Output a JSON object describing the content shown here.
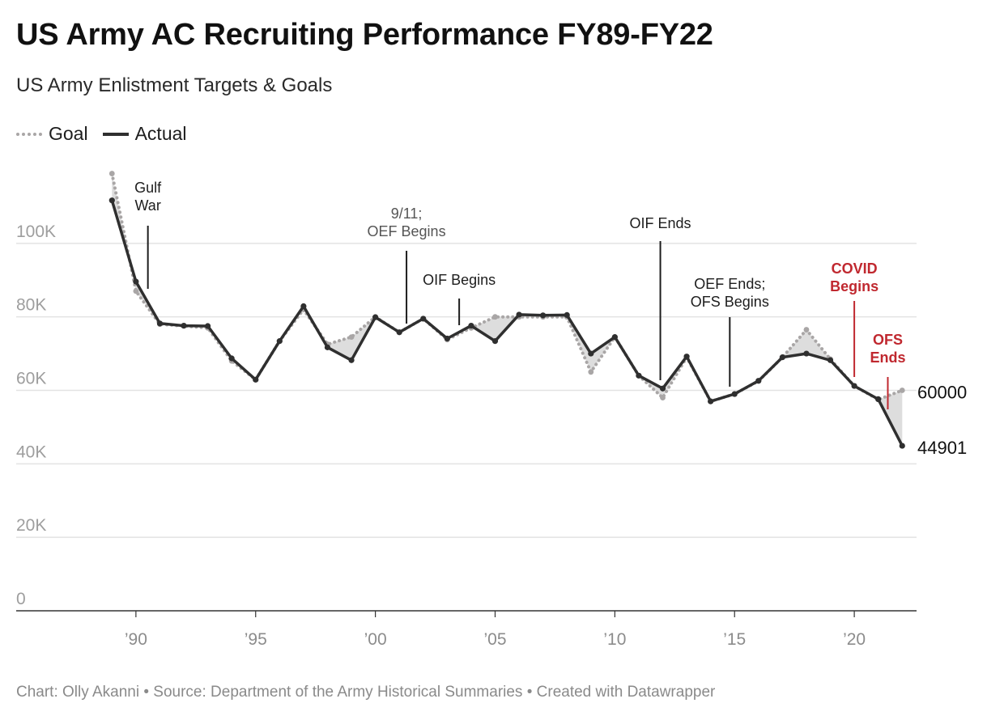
{
  "title": "US Army AC Recruiting Performance FY89-FY22",
  "subtitle": "US Army Enlistment Targets & Goals",
  "legend": {
    "goal_label": "Goal",
    "actual_label": "Actual"
  },
  "footer": "Chart: Olly Akanni • Source: Department of the Army Historical Summaries • Created with Datawrapper",
  "colors": {
    "actual": "#2f2f2f",
    "goal": "#a9a6a6",
    "gap_fill": "#d9d9d9",
    "grid": "#e3e3e3",
    "annotation_red": "#c0282f"
  },
  "chart_data": {
    "type": "line",
    "x": [
      1989,
      1990,
      1991,
      1992,
      1993,
      1994,
      1995,
      1996,
      1997,
      1998,
      1999,
      2000,
      2001,
      2002,
      2003,
      2004,
      2005,
      2006,
      2007,
      2008,
      2009,
      2010,
      2011,
      2012,
      2013,
      2014,
      2015,
      2016,
      2017,
      2018,
      2019,
      2020,
      2021,
      2022
    ],
    "series": [
      {
        "name": "Goal",
        "style": "dotted",
        "values": [
          119000,
          87000,
          78000,
          77500,
          77000,
          68000,
          62900,
          73400,
          82000,
          72550,
          74500,
          80000,
          75800,
          79500,
          73800,
          77000,
          80000,
          80000,
          80000,
          80000,
          65000,
          74500,
          64000,
          58000,
          69000,
          57000,
          59000,
          62500,
          69000,
          76500,
          68500,
          61200,
          57500,
          60000
        ]
      },
      {
        "name": "Actual",
        "style": "solid",
        "values": [
          111700,
          89600,
          78200,
          77600,
          77500,
          68700,
          62900,
          73400,
          82900,
          71700,
          68200,
          79900,
          75800,
          79500,
          74100,
          77600,
          73400,
          80600,
          80400,
          80500,
          70000,
          74500,
          64000,
          60500,
          69200,
          57000,
          59000,
          62600,
          69000,
          70000,
          68200,
          61200,
          57600,
          44901
        ]
      }
    ],
    "end_labels": {
      "goal": "60000",
      "actual": "44901"
    },
    "y_ticks": [
      0,
      20000,
      40000,
      60000,
      80000,
      100000
    ],
    "y_tick_labels": [
      "0",
      "20K",
      "40K",
      "60K",
      "80K",
      "100K"
    ],
    "x_ticks": [
      1990,
      1995,
      2000,
      2005,
      2010,
      2015,
      2020
    ],
    "x_tick_labels": [
      "’90",
      "’95",
      "’00",
      "’05",
      "’10",
      "’15",
      "’20"
    ],
    "ylim": [
      0,
      120000
    ],
    "xlim": [
      1985,
      2022.6
    ],
    "annotations": [
      {
        "lines": [
          "Gulf",
          "War"
        ],
        "x": 1990.5,
        "style": "dark"
      },
      {
        "lines": [
          "9/11;",
          "OEF Begins"
        ],
        "x": 2001.3,
        "style": "grey"
      },
      {
        "lines": [
          "OIF Begins"
        ],
        "x": 2003.5,
        "style": "dark"
      },
      {
        "lines": [
          "OIF Ends"
        ],
        "x": 2011.9,
        "style": "dark"
      },
      {
        "lines": [
          "OEF Ends;",
          "OFS Begins"
        ],
        "x": 2014.8,
        "style": "dark"
      },
      {
        "lines": [
          "COVID",
          "Begins"
        ],
        "x": 2020.0,
        "style": "red"
      },
      {
        "lines": [
          "OFS",
          "Ends"
        ],
        "x": 2021.4,
        "style": "red"
      }
    ]
  }
}
